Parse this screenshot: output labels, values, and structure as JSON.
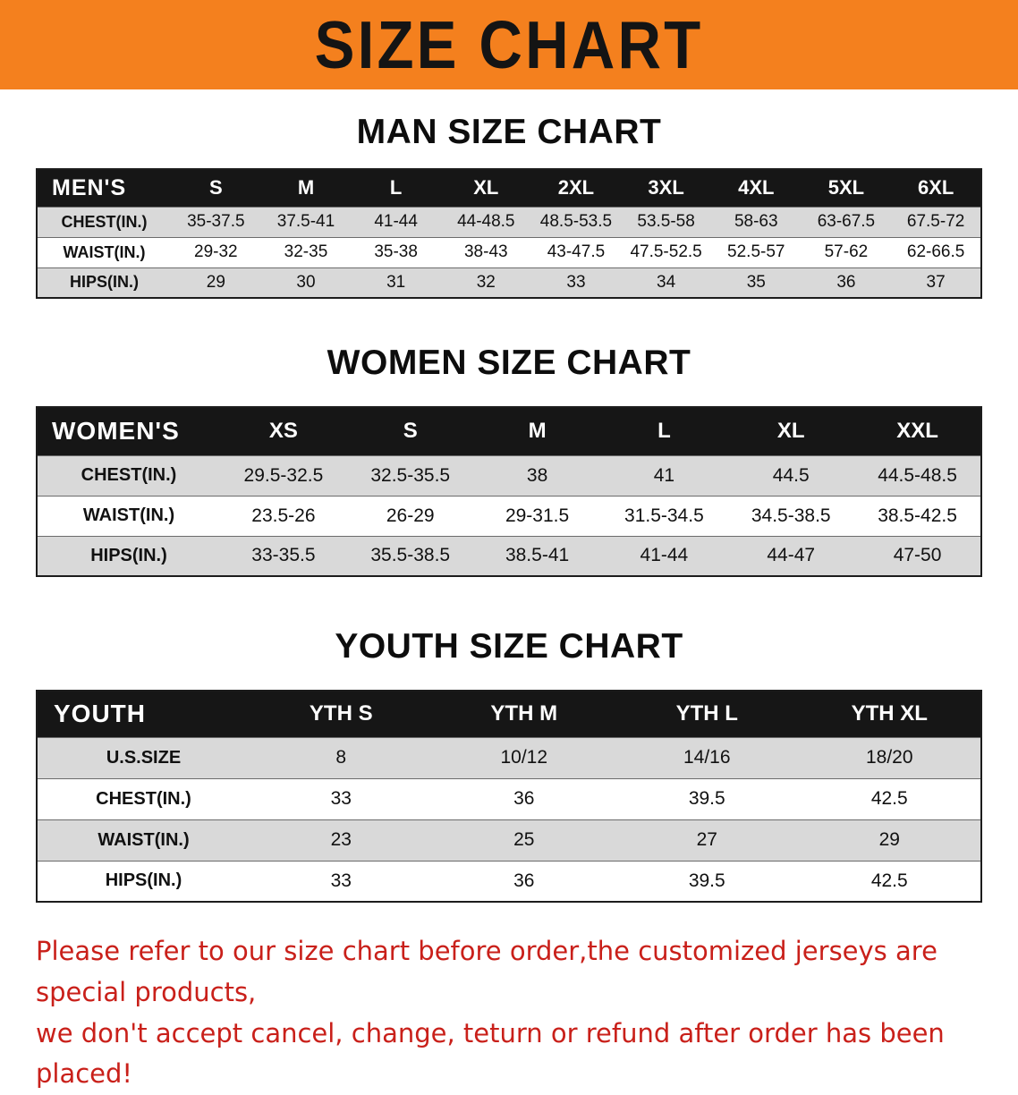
{
  "banner": {
    "title": "SIZE CHART"
  },
  "colors": {
    "banner_bg": "#f4801e",
    "table_header_bg": "#161616",
    "row_shade": "#d9d9d9",
    "note_red": "#c9201a"
  },
  "chart_data": [
    {
      "type": "table",
      "title": "MAN SIZE CHART",
      "columns": [
        "MEN'S",
        "S",
        "M",
        "L",
        "XL",
        "2XL",
        "3XL",
        "4XL",
        "5XL",
        "6XL"
      ],
      "rows": [
        [
          "CHEST(IN.)",
          "35-37.5",
          "37.5-41",
          "41-44",
          "44-48.5",
          "48.5-53.5",
          "53.5-58",
          "58-63",
          "63-67.5",
          "67.5-72"
        ],
        [
          "WAIST(IN.)",
          "29-32",
          "32-35",
          "35-38",
          "38-43",
          "43-47.5",
          "47.5-52.5",
          "52.5-57",
          "57-62",
          "62-66.5"
        ],
        [
          "HIPS(IN.)",
          "29",
          "30",
          "31",
          "32",
          "33",
          "34",
          "35",
          "36",
          "37"
        ]
      ]
    },
    {
      "type": "table",
      "title": "WOMEN SIZE CHART",
      "columns": [
        "WOMEN'S",
        "XS",
        "S",
        "M",
        "L",
        "XL",
        "XXL"
      ],
      "rows": [
        [
          "CHEST(IN.)",
          "29.5-32.5",
          "32.5-35.5",
          "38",
          "41",
          "44.5",
          "44.5-48.5"
        ],
        [
          "WAIST(IN.)",
          "23.5-26",
          "26-29",
          "29-31.5",
          "31.5-34.5",
          "34.5-38.5",
          "38.5-42.5"
        ],
        [
          "HIPS(IN.)",
          "33-35.5",
          "35.5-38.5",
          "38.5-41",
          "41-44",
          "44-47",
          "47-50"
        ]
      ]
    },
    {
      "type": "table",
      "title": "YOUTH SIZE CHART",
      "columns": [
        "YOUTH",
        "YTH S",
        "YTH M",
        "YTH L",
        "YTH XL"
      ],
      "rows": [
        [
          "U.S.SIZE",
          "8",
          "10/12",
          "14/16",
          "18/20"
        ],
        [
          "CHEST(IN.)",
          "33",
          "36",
          "39.5",
          "42.5"
        ],
        [
          "WAIST(IN.)",
          "23",
          "25",
          "27",
          "29"
        ],
        [
          "HIPS(IN.)",
          "33",
          "36",
          "39.5",
          "42.5"
        ]
      ]
    }
  ],
  "note": {
    "line1": "Please refer to our size chart before order,the customized jerseys are special products,",
    "line2": "we don't accept cancel, change, teturn or refund after order has been placed!"
  }
}
